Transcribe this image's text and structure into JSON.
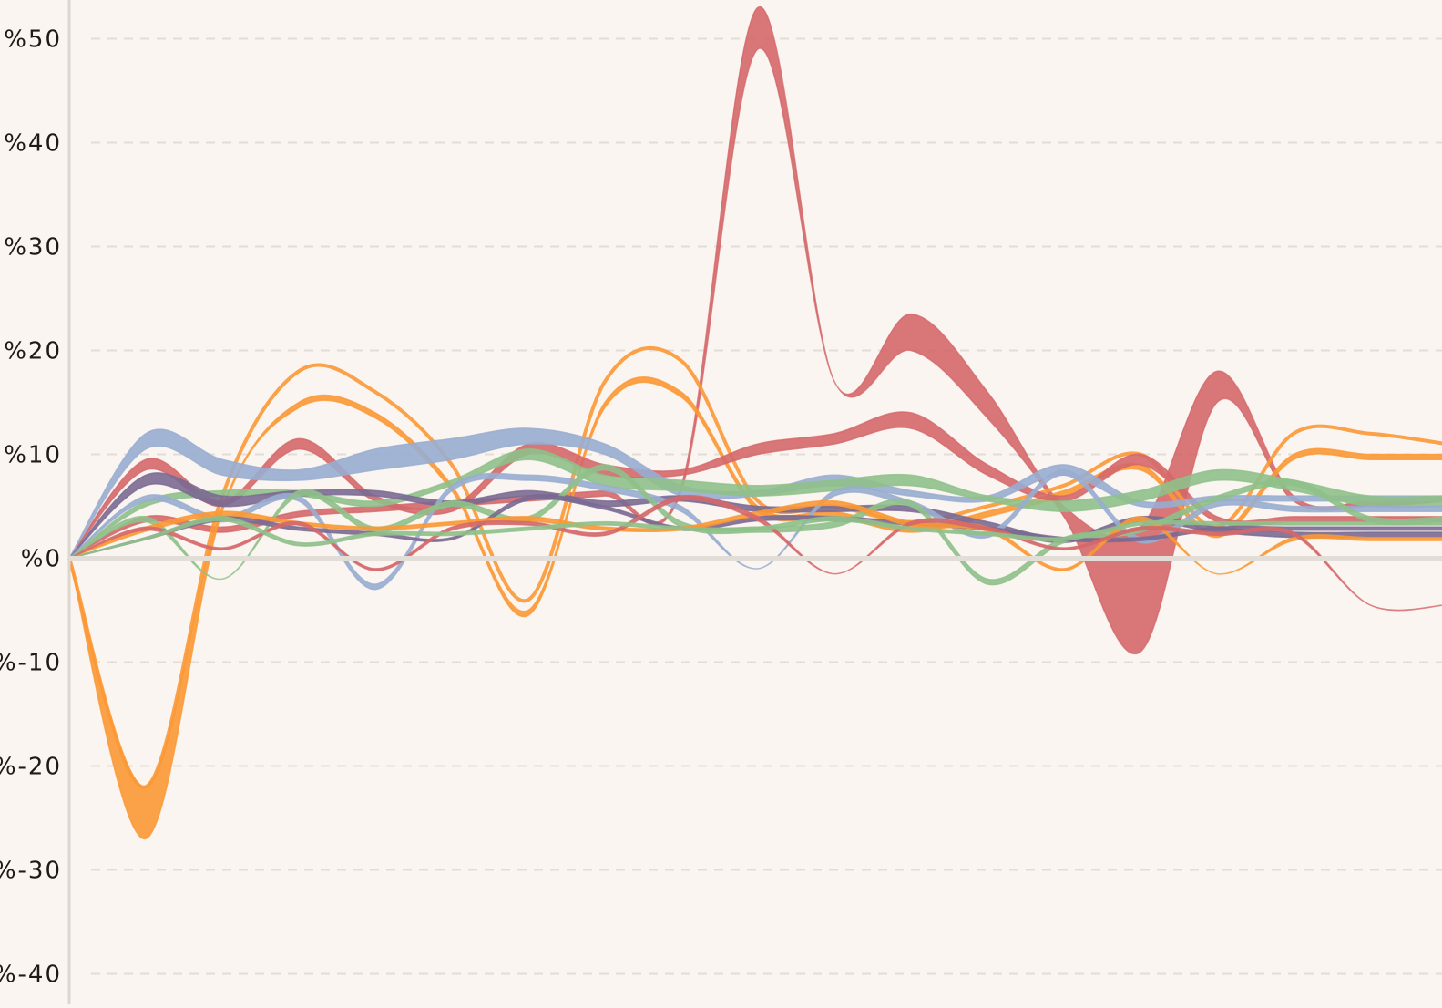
{
  "chart_data": {
    "type": "area",
    "title": "",
    "xlabel": "",
    "ylabel": "",
    "ylim": [
      -40,
      53
    ],
    "y_ticks": [
      50,
      40,
      30,
      20,
      10,
      0,
      -10,
      -20,
      -30,
      -40
    ],
    "y_tick_labels": [
      "%50",
      "%40",
      "%30",
      "%20",
      "%10",
      "%0",
      "%-10",
      "%-20",
      "%-30",
      "%-40"
    ],
    "grid": true,
    "legend": "none",
    "colors": {
      "background": "#faf5f1",
      "red": "#d4686a",
      "orange": "#fb9835",
      "blue": "#98add0",
      "green": "#8fc08a",
      "purple": "#7a6a92",
      "grid": "#e3ddd8",
      "axis": "#dcd6d0"
    },
    "x": [
      0,
      1,
      2,
      3,
      4,
      5,
      6,
      7,
      8,
      9,
      10,
      11,
      12,
      13,
      14,
      15,
      16,
      17,
      18
    ],
    "series": [
      {
        "color": "red",
        "upper": [
          0,
          4,
          3,
          4.5,
          5,
          5.5,
          6,
          6.5,
          7,
          53,
          17,
          23.5,
          16,
          5,
          3,
          18,
          6,
          5.5,
          6
        ],
        "lower": [
          0,
          3.5,
          2.5,
          4,
          4.5,
          5,
          5.5,
          6,
          6.5,
          49,
          17,
          20,
          13.5,
          4,
          -9,
          15,
          5.5,
          5,
          5.5
        ]
      },
      {
        "color": "orange",
        "upper": [
          0,
          -22,
          6,
          18,
          16,
          9,
          -4,
          17,
          19,
          5.5,
          5,
          3.5,
          5,
          7,
          10,
          3,
          12,
          12,
          11
        ]
      },
      {
        "color": "orange",
        "upper": [
          0,
          -22,
          5,
          15,
          14,
          7,
          -5,
          15,
          16,
          5,
          4.5,
          3,
          4.5,
          6.5,
          9,
          2.5,
          10,
          10,
          10
        ],
        "lower": [
          0,
          -27,
          4.5,
          14.5,
          13.5,
          6.5,
          -5.5,
          14.5,
          15.5,
          4.5,
          4,
          2.5,
          4,
          6,
          8.5,
          2,
          9.5,
          9.5,
          9.5
        ]
      },
      {
        "color": "red",
        "upper": [
          0,
          9.5,
          5.5,
          11.5,
          6,
          5,
          11,
          9,
          8.5,
          11,
          12,
          14,
          9,
          6,
          10,
          4,
          4,
          4,
          4
        ],
        "lower": [
          0,
          8.5,
          5,
          10.5,
          5.5,
          4.5,
          10,
          8,
          8,
          10,
          11,
          12.5,
          8,
          5.5,
          9,
          3.5,
          3.5,
          3.5,
          3.5
        ]
      },
      {
        "color": "blue",
        "upper": [
          0,
          12,
          9.5,
          8.5,
          10.5,
          11.5,
          12.5,
          11,
          7,
          6.5,
          8,
          6.5,
          6,
          9,
          5.5,
          6,
          6,
          6,
          6
        ],
        "lower": [
          0,
          10.5,
          8,
          7.5,
          8.5,
          9.5,
          11,
          10,
          6,
          6,
          7,
          6,
          5.5,
          8,
          5,
          5.5,
          5.5,
          5.5,
          5.5
        ]
      },
      {
        "color": "green",
        "upper": [
          0,
          5.5,
          6.5,
          6.5,
          5.5,
          7.5,
          10.5,
          8,
          7.5,
          7,
          7.5,
          8,
          6,
          5.5,
          6.5,
          8.5,
          7.5,
          6,
          6
        ],
        "lower": [
          0,
          5,
          6,
          6,
          5,
          7,
          9.5,
          7,
          6.5,
          6,
          6.5,
          7,
          5.5,
          4.5,
          5.5,
          7.5,
          6.5,
          5,
          5
        ]
      },
      {
        "color": "purple",
        "upper": [
          0,
          8,
          6,
          6.5,
          6.5,
          5.5,
          6.5,
          5.5,
          6,
          5,
          5,
          5,
          3.5,
          2,
          4,
          3,
          2.5,
          2.5,
          2.5
        ],
        "lower": [
          0,
          7,
          5,
          6,
          6,
          5,
          6,
          5,
          5.5,
          4.5,
          4.5,
          4.5,
          3,
          1.5,
          3.5,
          2.5,
          2,
          2,
          2
        ]
      },
      {
        "color": "blue",
        "upper": [
          0,
          6,
          4,
          6,
          -2.5,
          7,
          8,
          7,
          5,
          -1,
          6.5,
          5.5,
          2.5,
          8.5,
          2,
          5.5,
          5,
          5,
          5
        ],
        "lower": [
          0,
          5.5,
          3.5,
          5.5,
          -3,
          6.5,
          7.5,
          6.5,
          4.5,
          -1,
          6,
          5,
          2,
          8,
          1.5,
          5,
          4.5,
          4.5,
          4.5
        ]
      },
      {
        "color": "green",
        "upper": [
          0,
          4,
          -2,
          6.5,
          3,
          5.5,
          4,
          9,
          3.5,
          3,
          3.5,
          5.5,
          -2,
          2,
          3,
          6,
          7.5,
          4,
          4
        ],
        "lower": [
          0,
          3.5,
          -2,
          6,
          2.5,
          5,
          3.5,
          8.5,
          3,
          2.5,
          3,
          5,
          -2.5,
          1.5,
          2.5,
          5.5,
          7,
          3.5,
          3.5
        ]
      },
      {
        "color": "purple",
        "upper": [
          0,
          2,
          4,
          3,
          2.5,
          2,
          6,
          5,
          3,
          4,
          4,
          3.5,
          3,
          2,
          2,
          3,
          3,
          3,
          3
        ],
        "lower": [
          0,
          1.8,
          3.6,
          2.7,
          2.2,
          1.8,
          5.6,
          4.7,
          2.7,
          3.6,
          3.6,
          3.2,
          2.7,
          1.7,
          1.7,
          2.7,
          2.7,
          2.7,
          2.7
        ]
      },
      {
        "color": "orange",
        "upper": [
          0,
          3,
          4.5,
          3.5,
          3,
          3.5,
          4,
          3,
          3,
          4.5,
          5.5,
          3.5,
          3,
          -1,
          4,
          -1.5,
          2,
          2,
          2
        ],
        "lower": [
          0,
          2.6,
          4.1,
          3.2,
          2.7,
          3.2,
          3.6,
          2.7,
          2.7,
          4.1,
          5.1,
          3.1,
          2.6,
          -1.2,
          3.6,
          -1.5,
          1.7,
          1.7,
          1.7
        ]
      },
      {
        "color": "red",
        "upper": [
          0,
          3,
          1,
          3.5,
          -1,
          3,
          3.5,
          2.5,
          6,
          4,
          -1.5,
          3.5,
          3,
          1,
          3,
          2.5,
          2.5,
          -4.5,
          -4.5
        ],
        "lower": [
          0,
          2.7,
          0.8,
          3.2,
          -1.2,
          2.7,
          3.2,
          2.2,
          5.6,
          3.6,
          -1.5,
          3.2,
          2.7,
          0.8,
          2.7,
          2.2,
          2.2,
          -4.5,
          -4.5
        ]
      },
      {
        "color": "green",
        "upper": [
          0,
          2,
          4,
          1.5,
          2.5,
          2.5,
          3,
          3.5,
          3,
          3,
          4,
          3,
          2.5,
          2,
          3.5,
          3.5,
          3.5,
          3.5,
          3.5
        ],
        "lower": [
          0,
          1.8,
          3.6,
          1.2,
          2.2,
          2.2,
          2.7,
          3.2,
          2.7,
          2.7,
          3.6,
          2.7,
          2.2,
          1.7,
          3.2,
          3.2,
          3.2,
          3.2,
          3.2
        ]
      }
    ]
  }
}
